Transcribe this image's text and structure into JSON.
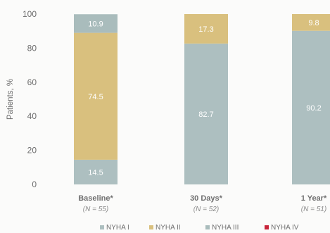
{
  "chart_data": {
    "type": "bar",
    "stacked": true,
    "ylabel": "Patients, %",
    "ylim": [
      0,
      100
    ],
    "yticks": [
      0,
      20,
      40,
      60,
      80,
      100
    ],
    "categories": [
      "Baseline*",
      "30 Days*",
      "1 Year*"
    ],
    "category_n": [
      "(N = 55)",
      "(N = 52)",
      "(N = 51)"
    ],
    "series": [
      {
        "name": "NYHA I",
        "color": "#adbfc0",
        "values": [
          14.5,
          82.7,
          90.2
        ],
        "labels": [
          "14.5",
          "82.7",
          "90.2"
        ]
      },
      {
        "name": "NYHA II",
        "color": "#d9c07e",
        "values": [
          74.5,
          17.3,
          9.8
        ],
        "labels": [
          "74.5",
          "17.3",
          "9.8"
        ]
      },
      {
        "name": "NYHA III",
        "color": "#a9bcbc",
        "values": [
          10.9,
          0,
          0
        ],
        "labels": [
          "10.9",
          "",
          ""
        ]
      },
      {
        "name": "NYHA IV",
        "color": "#c8243a",
        "values": [
          0,
          0,
          0
        ],
        "labels": [
          "",
          "",
          ""
        ]
      }
    ],
    "legend_position": "bottom",
    "grid": false
  }
}
